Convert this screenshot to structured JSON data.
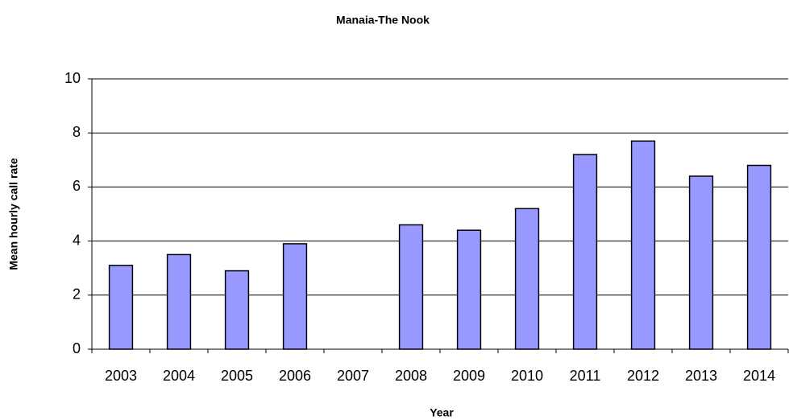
{
  "chart_data": {
    "type": "bar",
    "title": "Manaia-The Nook",
    "x_label": "Year",
    "y_label": "Mean hourly call rate",
    "categories": [
      "2003",
      "2004",
      "2005",
      "2006",
      "2007",
      "2008",
      "2009",
      "2010",
      "2011",
      "2012",
      "2013",
      "2014"
    ],
    "values": [
      3.1,
      3.5,
      2.9,
      3.9,
      null,
      4.6,
      4.4,
      5.2,
      7.2,
      7.7,
      6.4,
      6.8
    ],
    "color": "#9999ff",
    "ylim": [
      0,
      10
    ],
    "yticks": [
      0,
      2,
      4,
      6,
      8,
      10
    ],
    "grid": true
  }
}
